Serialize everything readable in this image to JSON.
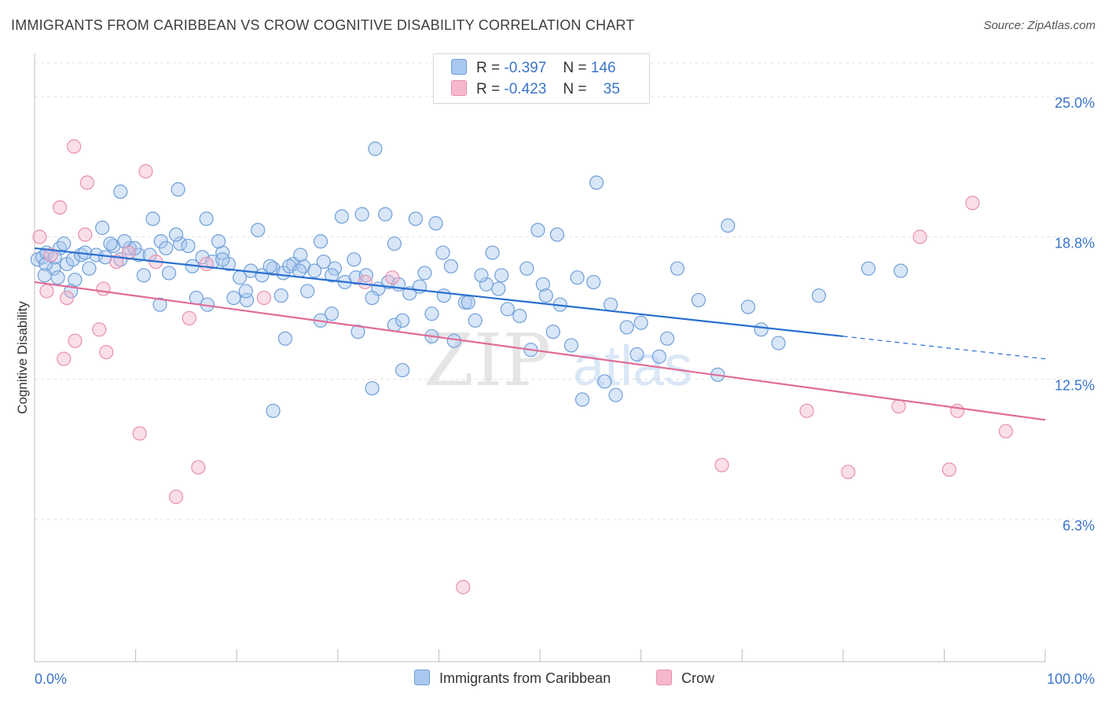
{
  "header": {
    "title": "IMMIGRANTS FROM CARIBBEAN VS CROW COGNITIVE DISABILITY CORRELATION CHART",
    "source": "Source: ZipAtlas.com"
  },
  "watermark": {
    "zip": "ZIP",
    "atlas": "atlas"
  },
  "stats_legend": [
    {
      "r_label": "R =",
      "r_value": "-0.397",
      "n_label": "N =",
      "n_value": "146",
      "color": "#a9c8ef"
    },
    {
      "r_label": "R =",
      "r_value": "-0.423",
      "n_label": "N =",
      "n_value": "35",
      "color": "#f5b8cc"
    }
  ],
  "colors": {
    "blue_fill": "#a9c8ef",
    "blue_stroke": "#6f9fd8",
    "blue_line": "#2a6fd0",
    "pink_fill": "#f5b8cc",
    "pink_stroke": "#e98fae",
    "pink_line": "#e06c97",
    "axis_label": "#3a74c9",
    "grid": "#e3e3e3"
  },
  "chart_data": {
    "type": "scatter",
    "xlabel": "",
    "ylabel": "Cognitive Disability",
    "xlim": [
      0,
      100
    ],
    "ylim": [
      0,
      26.5
    ],
    "x_tick_labels": [
      "0.0%",
      "100.0%"
    ],
    "y_ticks": [
      6.3,
      12.5,
      18.8,
      25.0
    ],
    "y_tick_labels": [
      "6.3%",
      "12.5%",
      "18.8%",
      "25.0%"
    ],
    "grid": true,
    "legend_position": "bottom",
    "series": [
      {
        "name": "Immigrants from Caribbean",
        "color": "#a9c8ef",
        "trend": {
          "x0": 0,
          "y0": 18.3,
          "x1": 80,
          "y1": 14.4,
          "x_dash_end": 100,
          "y_dash_end": 13.4
        },
        "points": [
          [
            0.3,
            17.8
          ],
          [
            0.8,
            17.9
          ],
          [
            1.2,
            18.1
          ],
          [
            1.9,
            17.4
          ],
          [
            2.5,
            18.3
          ],
          [
            3.2,
            17.6
          ],
          [
            3.8,
            17.8
          ],
          [
            4.6,
            18.0
          ],
          [
            5.4,
            17.4
          ],
          [
            6.1,
            18.0
          ],
          [
            7.0,
            17.9
          ],
          [
            7.8,
            18.4
          ],
          [
            8.5,
            17.8
          ],
          [
            9.4,
            18.3
          ],
          [
            10.3,
            18.0
          ],
          [
            11.4,
            18.0
          ],
          [
            12.5,
            18.6
          ],
          [
            13.3,
            17.2
          ],
          [
            14.4,
            18.5
          ],
          [
            15.6,
            17.5
          ],
          [
            16.6,
            17.9
          ],
          [
            17.6,
            17.7
          ],
          [
            18.6,
            18.1
          ],
          [
            19.2,
            17.6
          ],
          [
            20.3,
            17.0
          ],
          [
            21.4,
            17.3
          ],
          [
            22.5,
            17.1
          ],
          [
            23.6,
            17.4
          ],
          [
            24.6,
            17.2
          ],
          [
            25.6,
            17.6
          ],
          [
            26.6,
            17.5
          ],
          [
            27.7,
            17.3
          ],
          [
            28.6,
            17.7
          ],
          [
            29.7,
            17.4
          ],
          [
            30.7,
            16.8
          ],
          [
            31.8,
            17.0
          ],
          [
            32.8,
            17.1
          ],
          [
            34.0,
            16.5
          ],
          [
            35.0,
            16.8
          ],
          [
            36.0,
            16.7
          ],
          [
            37.1,
            16.3
          ],
          [
            38.1,
            16.6
          ],
          [
            39.3,
            15.4
          ],
          [
            40.5,
            16.2
          ],
          [
            41.5,
            14.2
          ],
          [
            42.6,
            15.9
          ],
          [
            43.6,
            15.1
          ],
          [
            44.7,
            16.7
          ],
          [
            45.9,
            16.5
          ],
          [
            46.8,
            15.6
          ],
          [
            48.0,
            15.3
          ],
          [
            49.1,
            13.8
          ],
          [
            50.3,
            16.7
          ],
          [
            51.3,
            14.6
          ],
          [
            52.0,
            15.8
          ],
          [
            53.1,
            14.0
          ],
          [
            54.2,
            11.6
          ],
          [
            55.3,
            16.8
          ],
          [
            56.4,
            12.4
          ],
          [
            57.5,
            11.8
          ],
          [
            58.6,
            14.8
          ],
          [
            59.6,
            13.6
          ],
          [
            61.8,
            13.5
          ],
          [
            63.6,
            17.4
          ],
          [
            65.7,
            16.0
          ],
          [
            67.6,
            12.7
          ],
          [
            68.6,
            19.3
          ],
          [
            70.6,
            15.7
          ],
          [
            71.9,
            14.7
          ],
          [
            73.6,
            14.1
          ],
          [
            77.6,
            16.2
          ],
          [
            82.5,
            17.4
          ],
          [
            85.7,
            17.3
          ],
          [
            1.1,
            17.6
          ],
          [
            2.0,
            17.9
          ],
          [
            2.9,
            18.5
          ],
          [
            4.0,
            16.9
          ],
          [
            5.0,
            18.1
          ],
          [
            6.7,
            19.2
          ],
          [
            7.5,
            18.5
          ],
          [
            8.9,
            18.6
          ],
          [
            9.9,
            18.3
          ],
          [
            10.8,
            17.1
          ],
          [
            11.7,
            19.6
          ],
          [
            13.0,
            18.3
          ],
          [
            14.0,
            18.9
          ],
          [
            15.2,
            18.4
          ],
          [
            16.0,
            16.1
          ],
          [
            17.0,
            19.6
          ],
          [
            18.2,
            18.6
          ],
          [
            19.7,
            16.1
          ],
          [
            21.0,
            16.0
          ],
          [
            22.1,
            19.1
          ],
          [
            23.3,
            17.5
          ],
          [
            24.4,
            16.2
          ],
          [
            25.2,
            17.5
          ],
          [
            26.3,
            18.0
          ],
          [
            27.0,
            16.4
          ],
          [
            28.3,
            18.6
          ],
          [
            29.4,
            17.1
          ],
          [
            30.4,
            19.7
          ],
          [
            31.6,
            17.8
          ],
          [
            32.4,
            19.8
          ],
          [
            33.4,
            16.1
          ],
          [
            34.7,
            19.8
          ],
          [
            35.6,
            18.5
          ],
          [
            37.7,
            19.6
          ],
          [
            38.6,
            17.2
          ],
          [
            39.7,
            19.4
          ],
          [
            40.4,
            18.1
          ],
          [
            41.2,
            17.5
          ],
          [
            42.9,
            15.9
          ],
          [
            44.2,
            17.1
          ],
          [
            45.3,
            18.1
          ],
          [
            46.2,
            17.1
          ],
          [
            48.7,
            17.4
          ],
          [
            49.8,
            19.1
          ],
          [
            50.6,
            16.2
          ],
          [
            51.7,
            18.9
          ],
          [
            53.7,
            17.0
          ],
          [
            55.6,
            21.2
          ],
          [
            57.0,
            15.8
          ],
          [
            60.0,
            15.0
          ],
          [
            62.6,
            14.3
          ],
          [
            36.4,
            12.9
          ],
          [
            33.7,
            22.7
          ],
          [
            8.5,
            20.8
          ],
          [
            14.2,
            20.9
          ],
          [
            12.4,
            15.8
          ],
          [
            17.1,
            15.8
          ],
          [
            23.6,
            11.1
          ],
          [
            24.8,
            14.3
          ],
          [
            28.3,
            15.1
          ],
          [
            29.4,
            15.4
          ],
          [
            32.0,
            14.6
          ],
          [
            33.4,
            12.1
          ],
          [
            35.6,
            14.9
          ],
          [
            36.4,
            15.1
          ],
          [
            39.3,
            14.4
          ],
          [
            26.2,
            17.3
          ],
          [
            20.9,
            16.4
          ],
          [
            18.6,
            17.8
          ],
          [
            1.0,
            17.1
          ],
          [
            2.3,
            17.0
          ],
          [
            3.6,
            16.4
          ]
        ]
      },
      {
        "name": "Crow",
        "color": "#f5b8cc",
        "trend": {
          "x0": 0,
          "y0": 16.8,
          "x1": 100,
          "y1": 10.7
        },
        "points": [
          [
            0.5,
            18.8
          ],
          [
            1.6,
            18.0
          ],
          [
            2.5,
            20.1
          ],
          [
            3.2,
            16.1
          ],
          [
            3.9,
            22.8
          ],
          [
            5.2,
            21.2
          ],
          [
            6.4,
            14.7
          ],
          [
            7.1,
            13.7
          ],
          [
            8.1,
            17.7
          ],
          [
            9.3,
            18.1
          ],
          [
            10.4,
            10.1
          ],
          [
            11.0,
            21.7
          ],
          [
            12.0,
            17.7
          ],
          [
            14.0,
            7.3
          ],
          [
            15.3,
            15.2
          ],
          [
            16.2,
            8.6
          ],
          [
            17.0,
            17.6
          ],
          [
            22.7,
            16.1
          ],
          [
            32.7,
            16.8
          ],
          [
            35.4,
            17.0
          ],
          [
            42.4,
            3.3
          ],
          [
            68.0,
            8.7
          ],
          [
            76.4,
            11.1
          ],
          [
            80.5,
            8.4
          ],
          [
            85.5,
            11.3
          ],
          [
            87.6,
            18.8
          ],
          [
            90.5,
            8.5
          ],
          [
            91.3,
            11.1
          ],
          [
            92.8,
            20.3
          ],
          [
            96.1,
            10.2
          ],
          [
            1.2,
            16.4
          ],
          [
            2.9,
            13.4
          ],
          [
            5.0,
            18.9
          ],
          [
            6.8,
            16.5
          ],
          [
            4.0,
            14.2
          ]
        ]
      }
    ]
  }
}
